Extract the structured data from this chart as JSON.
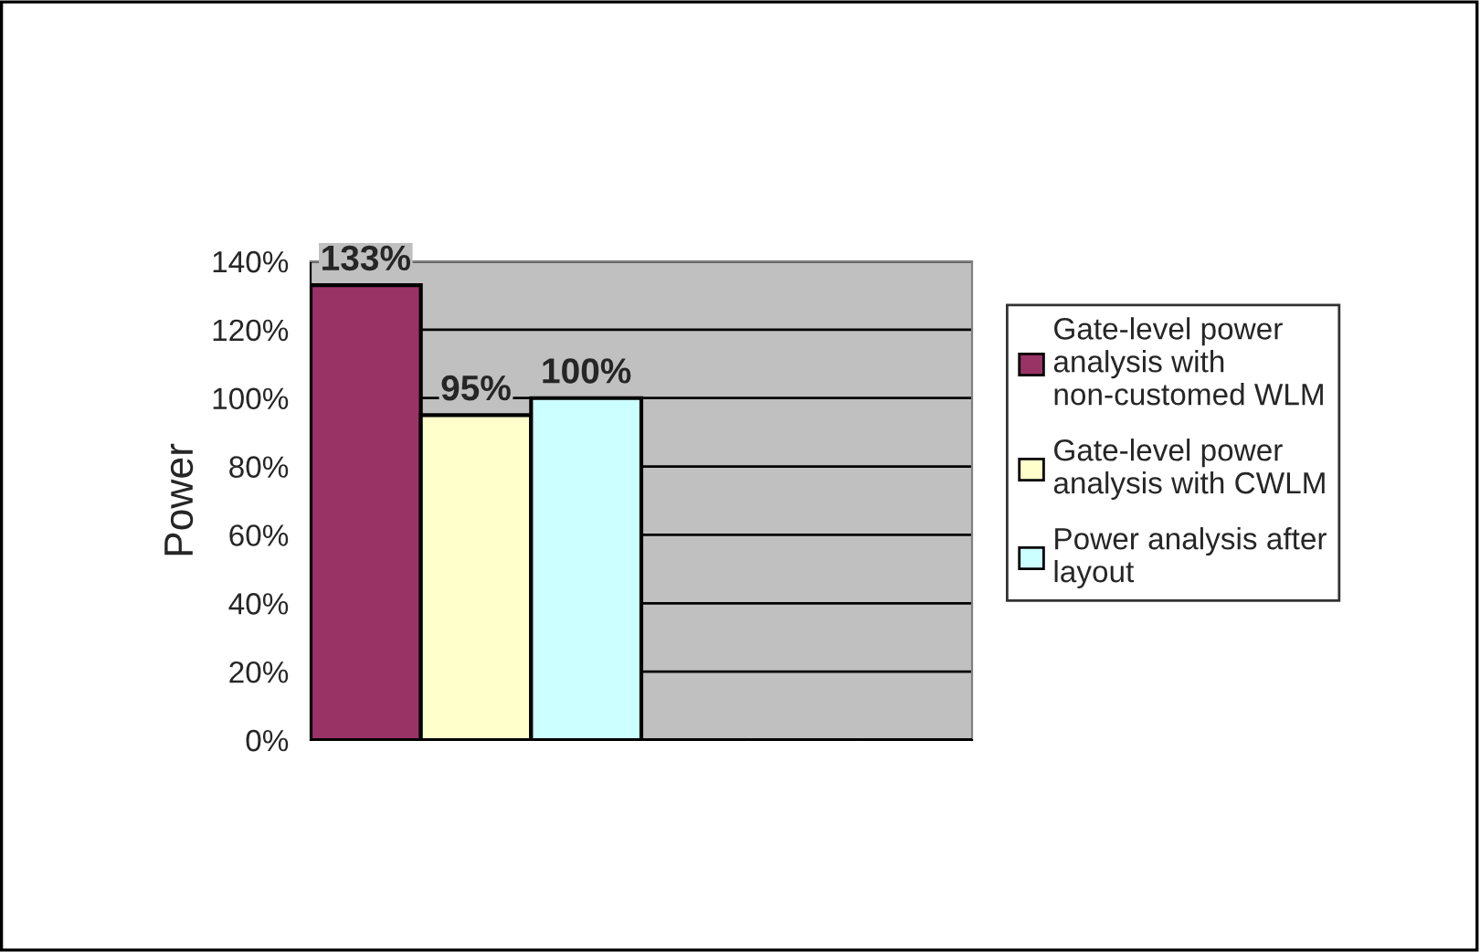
{
  "chart_data": {
    "type": "bar",
    "ylabel": "Power",
    "categories": [
      null,
      null
    ],
    "series": [
      {
        "name": "Gate-level power analysis with non-customed WLM",
        "color": "#993366",
        "values": [
          133,
          null
        ],
        "value_labels": [
          "133%",
          null
        ]
      },
      {
        "name": "Gate-level power analysis with CWLM",
        "color": "#ffffcc",
        "values": [
          95,
          null
        ],
        "value_labels": [
          "95%",
          null
        ]
      },
      {
        "name": "Power analysis after layout",
        "color": "#ccffff",
        "values": [
          100,
          null
        ],
        "value_labels": [
          "100%",
          null
        ]
      }
    ],
    "ylim": [
      0,
      140
    ],
    "yticks": [
      {
        "value": 0,
        "label": "0%"
      },
      {
        "value": 20,
        "label": "20%"
      },
      {
        "value": 40,
        "label": "40%"
      },
      {
        "value": 60,
        "label": "60%"
      },
      {
        "value": 80,
        "label": "80%"
      },
      {
        "value": 100,
        "label": "100%"
      },
      {
        "value": 120,
        "label": "120%"
      },
      {
        "value": 140,
        "label": "140%"
      }
    ],
    "grid": "y",
    "legend": "right"
  }
}
